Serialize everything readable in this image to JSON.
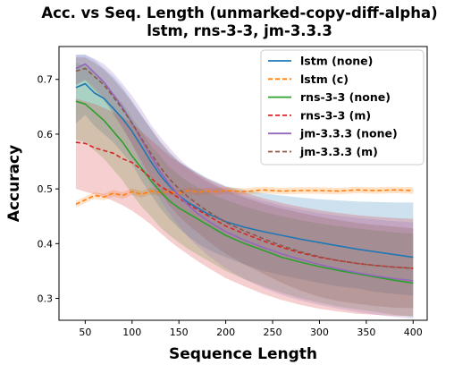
{
  "chart_data": {
    "type": "line",
    "title": "Acc. vs Seq. Length (unmarked-copy-diff-alpha)",
    "subtitle": "lstm, rns-3-3, jm-3.3.3",
    "xlabel": "Sequence Length",
    "ylabel": "Accuracy",
    "xlim": [
      22,
      415
    ],
    "ylim": [
      0.26,
      0.76
    ],
    "xticks": [
      50,
      100,
      150,
      200,
      250,
      300,
      350,
      400
    ],
    "yticks": [
      0.3,
      0.4,
      0.5,
      0.6,
      0.7
    ],
    "grid": false,
    "legend_position": "top-right",
    "x": [
      40,
      50,
      60,
      70,
      80,
      90,
      100,
      110,
      120,
      130,
      140,
      150,
      160,
      170,
      180,
      190,
      200,
      220,
      240,
      260,
      280,
      300,
      320,
      340,
      360,
      380,
      400
    ],
    "series": [
      {
        "name": "lstm (none)",
        "color": "#1f77b4",
        "dash": "solid",
        "values": [
          0.685,
          0.692,
          0.675,
          0.665,
          0.647,
          0.628,
          0.605,
          0.578,
          0.55,
          0.525,
          0.505,
          0.488,
          0.475,
          0.465,
          0.455,
          0.448,
          0.44,
          0.43,
          0.422,
          0.415,
          0.408,
          0.402,
          0.396,
          0.39,
          0.385,
          0.38,
          0.375
        ],
        "upper": [
          0.745,
          0.745,
          0.735,
          0.72,
          0.705,
          0.685,
          0.66,
          0.635,
          0.61,
          0.585,
          0.565,
          0.55,
          0.54,
          0.53,
          0.52,
          0.513,
          0.505,
          0.498,
          0.492,
          0.488,
          0.484,
          0.481,
          0.479,
          0.477,
          0.476,
          0.475,
          0.475
        ],
        "lower": [
          0.62,
          0.635,
          0.615,
          0.6,
          0.585,
          0.565,
          0.545,
          0.515,
          0.49,
          0.465,
          0.445,
          0.428,
          0.413,
          0.4,
          0.39,
          0.382,
          0.375,
          0.362,
          0.35,
          0.342,
          0.335,
          0.328,
          0.322,
          0.318,
          0.312,
          0.308,
          0.305
        ]
      },
      {
        "name": "lstm (c)",
        "color": "#ff7f0e",
        "dash": "dashed",
        "values": [
          0.472,
          0.48,
          0.488,
          0.485,
          0.492,
          0.488,
          0.495,
          0.49,
          0.496,
          0.493,
          0.495,
          0.492,
          0.497,
          0.494,
          0.496,
          0.495,
          0.497,
          0.495,
          0.498,
          0.496,
          0.497,
          0.497,
          0.496,
          0.498,
          0.497,
          0.498,
          0.497
        ],
        "upper": [
          0.478,
          0.486,
          0.494,
          0.491,
          0.498,
          0.494,
          0.501,
          0.496,
          0.502,
          0.499,
          0.501,
          0.498,
          0.503,
          0.5,
          0.502,
          0.501,
          0.503,
          0.501,
          0.504,
          0.502,
          0.503,
          0.503,
          0.502,
          0.504,
          0.503,
          0.504,
          0.503
        ],
        "lower": [
          0.466,
          0.474,
          0.482,
          0.479,
          0.486,
          0.482,
          0.489,
          0.484,
          0.49,
          0.487,
          0.489,
          0.486,
          0.491,
          0.488,
          0.49,
          0.489,
          0.491,
          0.489,
          0.492,
          0.49,
          0.491,
          0.491,
          0.49,
          0.492,
          0.491,
          0.492,
          0.491
        ]
      },
      {
        "name": "rns-3-3 (none)",
        "color": "#2ca02c",
        "dash": "solid",
        "values": [
          0.66,
          0.655,
          0.64,
          0.625,
          0.605,
          0.585,
          0.56,
          0.538,
          0.515,
          0.495,
          0.478,
          0.465,
          0.455,
          0.445,
          0.435,
          0.425,
          0.415,
          0.4,
          0.388,
          0.375,
          0.366,
          0.358,
          0.351,
          0.345,
          0.339,
          0.333,
          0.328
        ],
        "upper": [
          0.73,
          0.725,
          0.71,
          0.695,
          0.675,
          0.655,
          0.63,
          0.605,
          0.58,
          0.56,
          0.54,
          0.525,
          0.513,
          0.503,
          0.495,
          0.487,
          0.48,
          0.468,
          0.458,
          0.45,
          0.443,
          0.437,
          0.432,
          0.428,
          0.424,
          0.421,
          0.418
        ],
        "lower": [
          0.59,
          0.585,
          0.57,
          0.555,
          0.535,
          0.515,
          0.49,
          0.468,
          0.45,
          0.43,
          0.415,
          0.402,
          0.39,
          0.38,
          0.37,
          0.36,
          0.35,
          0.335,
          0.322,
          0.31,
          0.3,
          0.292,
          0.285,
          0.28,
          0.275,
          0.27,
          0.266
        ]
      },
      {
        "name": "rns-3-3 (m)",
        "color": "#d62728",
        "dash": "dashed",
        "values": [
          0.585,
          0.583,
          0.575,
          0.57,
          0.565,
          0.555,
          0.548,
          0.535,
          0.52,
          0.505,
          0.495,
          0.483,
          0.472,
          0.462,
          0.452,
          0.442,
          0.432,
          0.418,
          0.405,
          0.393,
          0.383,
          0.375,
          0.369,
          0.364,
          0.36,
          0.357,
          0.355
        ],
        "upper": [
          0.665,
          0.66,
          0.655,
          0.648,
          0.64,
          0.63,
          0.62,
          0.605,
          0.59,
          0.575,
          0.56,
          0.548,
          0.538,
          0.528,
          0.519,
          0.511,
          0.504,
          0.493,
          0.483,
          0.474,
          0.467,
          0.461,
          0.456,
          0.452,
          0.449,
          0.447,
          0.445
        ],
        "lower": [
          0.5,
          0.495,
          0.49,
          0.485,
          0.478,
          0.47,
          0.46,
          0.448,
          0.435,
          0.42,
          0.405,
          0.392,
          0.38,
          0.368,
          0.357,
          0.347,
          0.337,
          0.322,
          0.308,
          0.297,
          0.288,
          0.281,
          0.276,
          0.272,
          0.27,
          0.268,
          0.268
        ]
      },
      {
        "name": "jm-3.3.3 (none)",
        "color": "#9467bd",
        "dash": "solid",
        "values": [
          0.72,
          0.728,
          0.712,
          0.695,
          0.672,
          0.648,
          0.62,
          0.59,
          0.56,
          0.532,
          0.508,
          0.488,
          0.47,
          0.455,
          0.443,
          0.432,
          0.422,
          0.406,
          0.393,
          0.381,
          0.371,
          0.362,
          0.354,
          0.347,
          0.341,
          0.336,
          0.332
        ],
        "upper": [
          0.745,
          0.745,
          0.738,
          0.728,
          0.712,
          0.692,
          0.67,
          0.645,
          0.618,
          0.595,
          0.575,
          0.556,
          0.54,
          0.527,
          0.517,
          0.508,
          0.5,
          0.488,
          0.478,
          0.469,
          0.462,
          0.456,
          0.451,
          0.447,
          0.444,
          0.441,
          0.439
        ],
        "lower": [
          0.69,
          0.7,
          0.685,
          0.665,
          0.64,
          0.612,
          0.58,
          0.545,
          0.51,
          0.48,
          0.455,
          0.432,
          0.412,
          0.395,
          0.38,
          0.367,
          0.355,
          0.335,
          0.319,
          0.306,
          0.296,
          0.288,
          0.281,
          0.275,
          0.27,
          0.266,
          0.263
        ]
      },
      {
        "name": "jm-3.3.3 (m)",
        "color": "#8c564b",
        "dash": "dashed",
        "values": [
          0.715,
          0.72,
          0.705,
          0.69,
          0.668,
          0.645,
          0.62,
          0.592,
          0.565,
          0.54,
          0.518,
          0.5,
          0.485,
          0.472,
          0.46,
          0.449,
          0.439,
          0.423,
          0.409,
          0.396,
          0.385,
          0.376,
          0.369,
          0.364,
          0.36,
          0.357,
          0.355
        ],
        "upper": [
          0.74,
          0.74,
          0.73,
          0.718,
          0.7,
          0.68,
          0.658,
          0.633,
          0.61,
          0.587,
          0.567,
          0.55,
          0.536,
          0.524,
          0.514,
          0.505,
          0.497,
          0.484,
          0.473,
          0.464,
          0.456,
          0.449,
          0.443,
          0.438,
          0.434,
          0.431,
          0.428
        ],
        "lower": [
          0.69,
          0.698,
          0.68,
          0.662,
          0.636,
          0.61,
          0.582,
          0.551,
          0.52,
          0.493,
          0.469,
          0.45,
          0.434,
          0.42,
          0.406,
          0.393,
          0.381,
          0.362,
          0.345,
          0.328,
          0.314,
          0.303,
          0.295,
          0.29,
          0.286,
          0.283,
          0.282
        ]
      }
    ]
  }
}
